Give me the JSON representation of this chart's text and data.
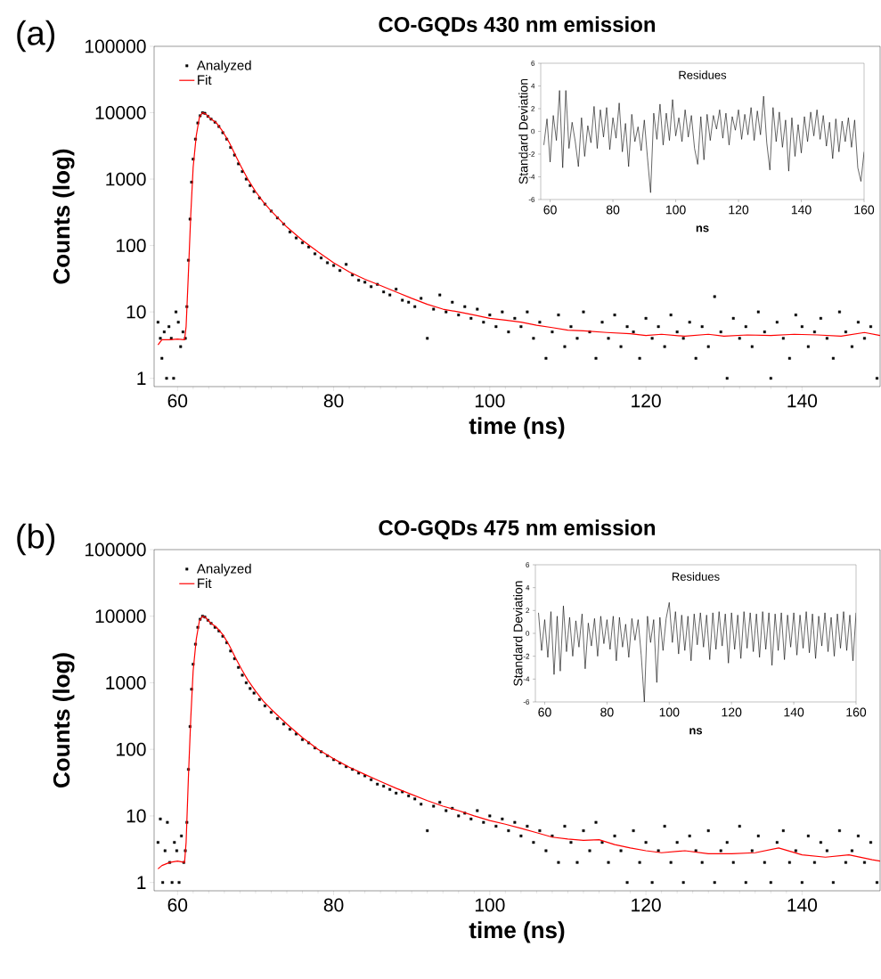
{
  "chart_data": [
    {
      "type": "scatter",
      "title": "CO-GQDs 430 nm emission",
      "xlabel": "time (ns)",
      "ylabel": "Counts (log)",
      "annotations": [
        "(a)"
      ],
      "log": "y",
      "legend": "top left",
      "xlim": [
        57,
        150
      ],
      "ylim": [
        0.75,
        100000
      ],
      "xticks": [
        60,
        80,
        100,
        120,
        140
      ],
      "yticks": [
        1,
        10,
        100,
        1000,
        10000,
        100000
      ],
      "series": [
        {
          "name": "Analyzed",
          "type": "scatter",
          "marker": "square",
          "color": "#000000",
          "x": [
            57.5,
            57.8,
            58.0,
            58.3,
            58.6,
            58.9,
            59.2,
            59.5,
            59.8,
            60.1,
            60.4,
            60.7,
            61.0,
            61.2,
            61.4,
            61.6,
            61.8,
            62.0,
            62.3,
            62.6,
            62.9,
            63.2,
            63.5,
            63.9,
            64.3,
            64.8,
            65.3,
            65.8,
            66.3,
            66.8,
            67.3,
            67.8,
            68.3,
            68.8,
            69.3,
            69.8,
            70.5,
            71.2,
            72.0,
            72.8,
            73.6,
            74.4,
            75.2,
            76.0,
            76.8,
            77.6,
            78.4,
            79.2,
            80.0,
            80.8,
            81.6,
            82.4,
            83.2,
            84.0,
            84.8,
            85.6,
            86.4,
            87.2,
            88.0,
            88.8,
            89.6,
            90.4,
            91.2,
            92.0,
            92.8,
            93.6,
            94.4,
            95.2,
            96.0,
            96.8,
            97.6,
            98.4,
            99.2,
            100.0,
            100.8,
            101.6,
            102.4,
            103.2,
            104.0,
            104.8,
            105.6,
            106.4,
            107.2,
            108.0,
            108.8,
            109.6,
            110.4,
            111.2,
            112.0,
            112.8,
            113.6,
            114.4,
            115.2,
            116.0,
            116.8,
            117.6,
            118.4,
            119.2,
            120.0,
            120.8,
            121.6,
            122.4,
            123.2,
            124.0,
            124.8,
            125.6,
            126.4,
            127.2,
            128.0,
            128.8,
            129.6,
            130.4,
            131.2,
            132.0,
            132.8,
            133.6,
            134.4,
            135.2,
            136.0,
            136.8,
            137.6,
            138.4,
            139.2,
            140.0,
            140.8,
            141.6,
            142.4,
            143.2,
            144.0,
            144.8,
            145.6,
            146.4,
            147.2,
            148.0,
            148.8,
            149.6
          ],
          "values": [
            7,
            4,
            2,
            5,
            1,
            6,
            4,
            1,
            10,
            7,
            3,
            5,
            4,
            12,
            60,
            250,
            900,
            2000,
            4000,
            7000,
            9000,
            10000,
            9800,
            8800,
            8000,
            7200,
            6200,
            5000,
            4000,
            3000,
            2300,
            1700,
            1300,
            1000,
            800,
            650,
            520,
            420,
            330,
            260,
            210,
            160,
            130,
            110,
            95,
            75,
            65,
            55,
            50,
            42,
            52,
            36,
            30,
            28,
            24,
            26,
            20,
            18,
            22,
            15,
            14,
            12,
            16,
            4,
            11,
            18,
            10,
            14,
            9,
            12,
            8,
            11,
            7,
            9,
            6,
            10,
            5,
            8,
            6,
            10,
            4,
            7,
            2,
            5,
            9,
            3,
            6,
            4,
            10,
            5,
            2,
            7,
            4,
            9,
            3,
            6,
            5,
            2,
            8,
            4,
            6,
            3,
            9,
            5,
            4,
            7,
            2,
            6,
            3,
            17,
            5,
            1,
            8,
            4,
            6,
            3,
            10,
            5,
            1,
            7,
            4,
            2,
            9,
            6,
            3,
            5,
            8,
            4,
            2,
            10,
            5,
            3,
            7,
            4,
            6,
            1
          ]
        },
        {
          "name": "Fit",
          "type": "line",
          "color": "#ff0000",
          "x": [
            57.5,
            58,
            59,
            60,
            60.9,
            61.1,
            61.4,
            61.7,
            62,
            62.4,
            62.8,
            63.2,
            63.6,
            64.2,
            65,
            65.8,
            66.6,
            67.4,
            68.2,
            69,
            70,
            71,
            72,
            74,
            76,
            78,
            80,
            82,
            84,
            86,
            88,
            90,
            92,
            94,
            96,
            98,
            100,
            102,
            104,
            106,
            108,
            110,
            112,
            115,
            118,
            120,
            122,
            125,
            128,
            130,
            133,
            136,
            139,
            142,
            145,
            148,
            150
          ],
          "values": [
            3.2,
            3.8,
            3.8,
            3.9,
            3.8,
            6,
            40,
            300,
            1500,
            4500,
            8500,
            10000,
            9600,
            8200,
            7000,
            5200,
            3600,
            2300,
            1500,
            1000,
            650,
            450,
            330,
            190,
            120,
            80,
            55,
            40,
            31,
            25,
            20,
            16,
            13,
            11,
            10,
            9,
            8,
            7.5,
            7,
            6.3,
            5.8,
            5.3,
            5.2,
            4.9,
            4.7,
            4.4,
            4.6,
            4.3,
            4.6,
            4.3,
            4.5,
            4.4,
            4.6,
            4.5,
            4.3,
            4.9,
            4.4
          ]
        }
      ]
    },
    {
      "type": "line",
      "title": "Residues",
      "xlabel": "ns",
      "ylabel": "Standard Deviation",
      "xlim": [
        57,
        160
      ],
      "ylim": [
        -6,
        6
      ],
      "xticks": [
        60,
        80,
        100,
        120,
        140,
        160
      ],
      "yticks": [
        -6,
        -4,
        -2,
        0,
        2,
        4,
        6
      ],
      "series": [
        {
          "color": "#000000",
          "x": [
            58,
            59,
            60,
            61,
            62,
            63,
            64,
            65,
            66,
            67,
            68,
            69,
            70,
            71,
            72,
            73,
            74,
            75,
            76,
            77,
            78,
            79,
            80,
            81,
            82,
            83,
            84,
            85,
            86,
            87,
            88,
            89,
            90,
            91,
            92,
            93,
            94,
            95,
            96,
            97,
            98,
            99,
            100,
            101,
            102,
            103,
            104,
            105,
            106,
            107,
            108,
            109,
            110,
            111,
            112,
            113,
            114,
            115,
            116,
            117,
            118,
            119,
            120,
            121,
            122,
            123,
            124,
            125,
            126,
            127,
            128,
            129,
            130,
            131,
            132,
            133,
            134,
            135,
            136,
            137,
            138,
            139,
            140,
            141,
            142,
            143,
            144,
            145,
            146,
            147,
            148,
            149,
            150,
            151,
            152,
            153,
            154,
            155,
            156,
            157,
            158,
            159,
            160
          ],
          "values": [
            -1.2,
            1.1,
            -2.7,
            1.4,
            -0.8,
            3.6,
            -3.2,
            3.6,
            -1.5,
            0.8,
            -0.9,
            -3.1,
            1.2,
            -2.2,
            0.5,
            -1.0,
            2.2,
            -1.5,
            1.9,
            -0.5,
            2.1,
            -1.6,
            1.2,
            -0.6,
            2.5,
            -1.8,
            0.7,
            -3.1,
            1.5,
            -0.9,
            0.4,
            -1.7,
            1.0,
            -2.3,
            -5.4,
            1.6,
            -0.7,
            2.4,
            -1.2,
            1.6,
            -0.8,
            2.8,
            -0.4,
            1.2,
            -0.9,
            1.9,
            -0.5,
            1.4,
            -1.5,
            -2.9,
            1.3,
            -2.5,
            1.5,
            -0.8,
            1.4,
            0.2,
            1.9,
            -0.6,
            1.6,
            -1.2,
            1.3,
            0.1,
            1.9,
            -0.7,
            1.5,
            -0.3,
            2.1,
            -0.8,
            1.8,
            -0.3,
            3.1,
            -1.0,
            -3.4,
            2.1,
            -0.9,
            1.7,
            -1.4,
            1.0,
            -3.5,
            1.2,
            -2.2,
            0.6,
            -1.9,
            1.3,
            -0.9,
            1.7,
            -0.4,
            1.9,
            -0.7,
            1.4,
            -1.3,
            0.8,
            -2.4,
            1.1,
            -1.8,
            0.9,
            -0.9,
            1.2,
            -1.4,
            1.0,
            -3.2,
            -4.4,
            -1.8
          ]
        }
      ]
    },
    {
      "type": "scatter",
      "title": "CO-GQDs 475 nm emission",
      "xlabel": "time (ns)",
      "ylabel": "Counts (log)",
      "annotations": [
        "(b)"
      ],
      "log": "y",
      "legend": "top left",
      "xlim": [
        57,
        150
      ],
      "ylim": [
        0.75,
        100000
      ],
      "xticks": [
        60,
        80,
        100,
        120,
        140
      ],
      "yticks": [
        1,
        10,
        100,
        1000,
        10000,
        100000
      ],
      "series": [
        {
          "name": "Analyzed",
          "type": "scatter",
          "marker": "square",
          "color": "#000000",
          "x": [
            57.5,
            57.8,
            58.1,
            58.4,
            58.7,
            59.0,
            59.3,
            59.6,
            59.9,
            60.2,
            60.5,
            60.8,
            61.0,
            61.2,
            61.4,
            61.6,
            61.8,
            62.0,
            62.3,
            62.6,
            62.9,
            63.2,
            63.5,
            63.9,
            64.3,
            64.8,
            65.3,
            65.8,
            66.3,
            66.8,
            67.3,
            67.8,
            68.3,
            68.8,
            69.3,
            69.8,
            70.5,
            71.2,
            72.0,
            72.8,
            73.6,
            74.4,
            75.2,
            76.0,
            76.8,
            77.6,
            78.4,
            79.2,
            80.0,
            80.8,
            81.6,
            82.4,
            83.2,
            84.0,
            84.8,
            85.6,
            86.4,
            87.2,
            88.0,
            88.8,
            89.6,
            90.4,
            91.2,
            92.0,
            92.8,
            93.6,
            94.4,
            95.2,
            96.0,
            96.8,
            97.6,
            98.4,
            99.2,
            100.0,
            100.8,
            101.6,
            102.4,
            103.2,
            104.0,
            104.8,
            105.6,
            106.4,
            107.2,
            108.0,
            108.8,
            109.6,
            110.4,
            111.2,
            112.0,
            112.8,
            113.6,
            114.4,
            115.2,
            116.0,
            116.8,
            117.6,
            118.4,
            119.2,
            120.0,
            120.8,
            121.6,
            122.4,
            123.2,
            124.0,
            124.8,
            125.6,
            126.4,
            127.2,
            128.0,
            128.8,
            129.6,
            130.4,
            131.2,
            132.0,
            132.8,
            133.6,
            134.4,
            135.2,
            136.0,
            136.8,
            137.6,
            138.4,
            139.2,
            140.0,
            140.8,
            141.6,
            142.4,
            143.2,
            144.0,
            144.8,
            145.6,
            146.4,
            147.2,
            148.0,
            148.8,
            149.6
          ],
          "values": [
            4,
            9,
            1,
            3,
            8,
            2,
            1,
            4,
            3,
            1,
            5,
            2,
            3,
            8,
            50,
            220,
            800,
            1900,
            3800,
            6800,
            9000,
            10000,
            9700,
            8700,
            7800,
            6800,
            6000,
            5000,
            4000,
            3000,
            2300,
            1700,
            1300,
            1000,
            820,
            700,
            560,
            450,
            360,
            290,
            240,
            200,
            170,
            140,
            125,
            105,
            92,
            80,
            70,
            62,
            55,
            50,
            44,
            40,
            35,
            30,
            28,
            25,
            22,
            23,
            20,
            18,
            15,
            6,
            14,
            16,
            12,
            13,
            10,
            11,
            9,
            12,
            8,
            10,
            7,
            9,
            6,
            8,
            5,
            7,
            4,
            6,
            3,
            5,
            2,
            7,
            4,
            2,
            6,
            3,
            8,
            4,
            2,
            5,
            3,
            1,
            6,
            2,
            4,
            1,
            3,
            7,
            2,
            4,
            1,
            5,
            3,
            2,
            6,
            1,
            3,
            4,
            2,
            7,
            1,
            3,
            5,
            2,
            1,
            4,
            6,
            2,
            3,
            1,
            5,
            2,
            4,
            3,
            1,
            6,
            2,
            3,
            5,
            2,
            4,
            1
          ]
        },
        {
          "name": "Fit",
          "type": "line",
          "color": "#ff0000",
          "x": [
            57.5,
            58,
            59,
            60,
            60.9,
            61.1,
            61.4,
            61.7,
            62,
            62.4,
            62.8,
            63.2,
            63.6,
            64.2,
            65,
            65.8,
            66.6,
            67.4,
            68.2,
            69,
            70,
            71,
            72,
            74,
            76,
            78,
            80,
            82,
            84,
            86,
            88,
            90,
            92,
            94,
            96,
            98,
            100,
            102,
            104,
            106,
            108,
            110,
            112,
            114,
            116,
            118,
            120,
            122,
            125,
            128,
            131,
            134,
            137,
            140,
            143,
            146,
            149,
            150
          ],
          "values": [
            1.6,
            1.8,
            2,
            2.1,
            2,
            4,
            40,
            300,
            1500,
            4500,
            8500,
            10000,
            9500,
            8000,
            6800,
            5300,
            3700,
            2400,
            1600,
            1100,
            750,
            530,
            400,
            240,
            150,
            100,
            72,
            54,
            42,
            33,
            26,
            21,
            17,
            14,
            12,
            10,
            8.5,
            7.5,
            6.5,
            5.6,
            4.8,
            4.5,
            4.3,
            4.4,
            3.7,
            3.3,
            3,
            2.8,
            3,
            2.7,
            2.7,
            2.8,
            3.3,
            2.6,
            2.4,
            2.6,
            2.2,
            2.1
          ]
        }
      ]
    },
    {
      "type": "line",
      "title": "Residues",
      "xlabel": "ns",
      "ylabel": "Standard Deviation",
      "xlim": [
        57,
        160
      ],
      "ylim": [
        -6,
        6
      ],
      "xticks": [
        60,
        80,
        100,
        120,
        140,
        160
      ],
      "yticks": [
        -6,
        -4,
        -2,
        0,
        2,
        4,
        6
      ],
      "series": [
        {
          "color": "#000000",
          "x": [
            58,
            59,
            60,
            61,
            62,
            63,
            64,
            65,
            66,
            67,
            68,
            69,
            70,
            71,
            72,
            73,
            74,
            75,
            76,
            77,
            78,
            79,
            80,
            81,
            82,
            83,
            84,
            85,
            86,
            87,
            88,
            89,
            90,
            91,
            92,
            93,
            94,
            95,
            96,
            97,
            98,
            99,
            100,
            101,
            102,
            103,
            104,
            105,
            106,
            107,
            108,
            109,
            110,
            111,
            112,
            113,
            114,
            115,
            116,
            117,
            118,
            119,
            120,
            121,
            122,
            123,
            124,
            125,
            126,
            127,
            128,
            129,
            130,
            131,
            132,
            133,
            134,
            135,
            136,
            137,
            138,
            139,
            140,
            141,
            142,
            143,
            144,
            145,
            146,
            147,
            148,
            149,
            150,
            151,
            152,
            153,
            154,
            155,
            156,
            157,
            158,
            159,
            160
          ],
          "values": [
            1.8,
            -1.5,
            1.2,
            -2.1,
            1.9,
            -3.6,
            1.5,
            -3.3,
            2.4,
            -1.6,
            1.4,
            -2.0,
            1.1,
            -1.2,
            1.7,
            -3.1,
            0.9,
            -1.1,
            1.3,
            -2.0,
            1.5,
            -0.9,
            1.2,
            -1.4,
            1.5,
            -2.4,
            1.4,
            -1.2,
            0.8,
            -2.1,
            1.3,
            -0.6,
            1.2,
            -1.9,
            -6.0,
            1.5,
            -0.8,
            1.2,
            -4.3,
            1.4,
            -1.5,
            1.3,
            2.7,
            -0.8,
            1.9,
            -1.8,
            1.6,
            -1.5,
            1.5,
            -2.4,
            1.7,
            -1.0,
            1.8,
            -1.2,
            1.6,
            -2.3,
            1.8,
            -1.4,
            1.9,
            -1.1,
            1.7,
            -2.6,
            1.8,
            -1.4,
            1.6,
            -2.2,
            1.9,
            -1.3,
            1.8,
            -1.6,
            1.7,
            -2.1,
            1.9,
            -1.4,
            1.8,
            -2.8,
            1.7,
            -1.5,
            1.8,
            -2.3,
            1.6,
            -1.2,
            1.8,
            -1.9,
            1.6,
            -1.3,
            1.9,
            -1.7,
            1.7,
            -2.2,
            1.5,
            -1.1,
            1.8,
            -1.6,
            1.4,
            -2.0,
            1.7,
            -1.3,
            1.9,
            -1.5,
            1.6,
            -2.4,
            1.8
          ]
        }
      ]
    }
  ]
}
